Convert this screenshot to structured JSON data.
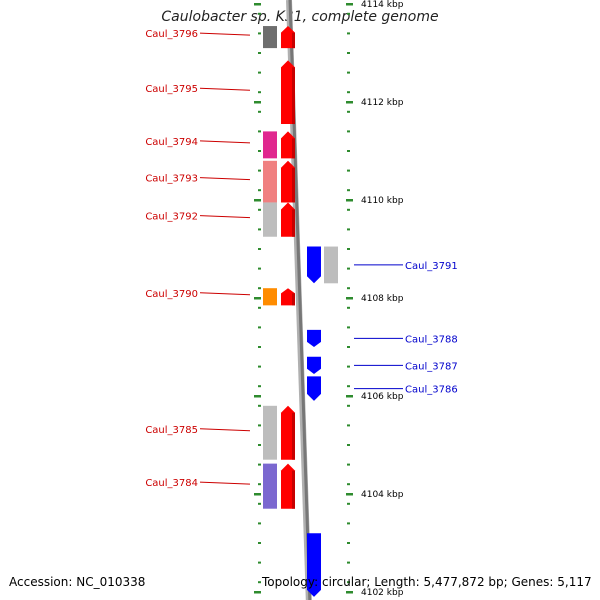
{
  "title": "Caulobacter sp. K31, complete genome",
  "accession": "Accession: NC_010338",
  "summary": "Topology: circular; Length: 5,477,872 bp; Genes: 5,117",
  "colors": {
    "forward_label": "#cc0000",
    "reverse_label": "#0000cc",
    "tick": "#2e8b2e",
    "backbone": "#777777"
  },
  "axis": {
    "ticks": [
      {
        "label": "4114 kbp",
        "kbp": 4114
      },
      {
        "label": "4112 kbp",
        "kbp": 4112
      },
      {
        "label": "4110 kbp",
        "kbp": 4110
      },
      {
        "label": "4108 kbp",
        "kbp": 4108
      },
      {
        "label": "4106 kbp",
        "kbp": 4106
      },
      {
        "label": "4104 kbp",
        "kbp": 4104
      },
      {
        "label": "4102 kbp",
        "kbp": 4102
      }
    ]
  },
  "forward_genes": [
    {
      "label": "Caul_3796",
      "start_kbp": 4113.1,
      "end_kbp": 4113.55,
      "cog_color": "#6e6e6e"
    },
    {
      "label": "Caul_3795",
      "start_kbp": 4111.55,
      "end_kbp": 4112.85,
      "cog_color": ""
    },
    {
      "label": "Caul_3794",
      "start_kbp": 4110.85,
      "end_kbp": 4111.4,
      "cog_color": "#e0288f"
    },
    {
      "label": "Caul_3793",
      "start_kbp": 4109.95,
      "end_kbp": 4110.8,
      "cog_color": "#f08080"
    },
    {
      "label": "Caul_3792",
      "start_kbp": 4109.25,
      "end_kbp": 4109.95,
      "cog_color": "#bdbdbd"
    },
    {
      "label": "Caul_3790",
      "start_kbp": 4107.85,
      "end_kbp": 4108.2,
      "cog_color": "#ff8c00"
    },
    {
      "label": "Caul_3785",
      "start_kbp": 4104.7,
      "end_kbp": 4105.8,
      "cog_color": "#bdbdbd"
    },
    {
      "label": "Caul_3784",
      "start_kbp": 4103.7,
      "end_kbp": 4104.62,
      "cog_color": "#7b68d0"
    }
  ],
  "reverse_genes": [
    {
      "label": "Caul_3791",
      "start_kbp": 4108.3,
      "end_kbp": 4109.05,
      "cog_color": "#bdbdbd"
    },
    {
      "label": "Caul_3788",
      "start_kbp": 4107.0,
      "end_kbp": 4107.35,
      "cog_color": ""
    },
    {
      "label": "Caul_3787",
      "start_kbp": 4106.45,
      "end_kbp": 4106.8,
      "cog_color": ""
    },
    {
      "label": "Caul_3786",
      "start_kbp": 4105.9,
      "end_kbp": 4106.4,
      "cog_color": ""
    },
    {
      "label": "",
      "start_kbp": 4101.9,
      "end_kbp": 4103.2,
      "cog_color": ""
    }
  ]
}
